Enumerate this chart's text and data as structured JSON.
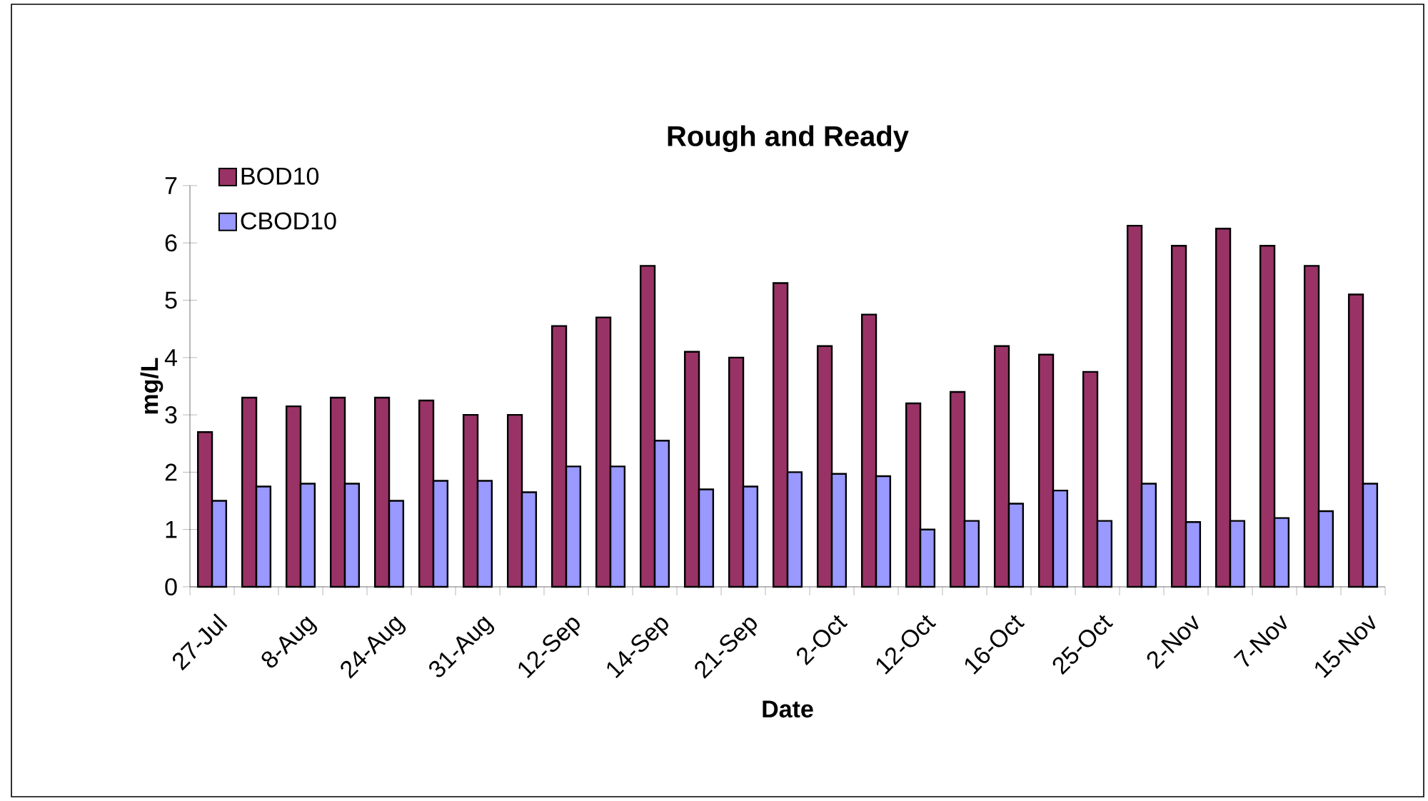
{
  "chart_data": {
    "type": "bar",
    "title": "Rough and Ready",
    "xlabel": "Date",
    "ylabel": "mg/L",
    "categories": [
      "27-Jul",
      null,
      "8-Aug",
      null,
      "24-Aug",
      null,
      "31-Aug",
      null,
      "12-Sep",
      null,
      "14-Sep",
      null,
      "21-Sep",
      null,
      "2-Oct",
      null,
      "12-Oct",
      null,
      "16-Oct",
      null,
      "25-Oct",
      null,
      "2-Nov",
      null,
      "7-Nov",
      null,
      "15-Nov"
    ],
    "series": [
      {
        "name": "BOD10",
        "color": "#993366",
        "values": [
          2.7,
          3.3,
          3.15,
          3.3,
          3.3,
          3.25,
          3.0,
          3.0,
          4.55,
          4.7,
          5.6,
          4.1,
          4.0,
          5.3,
          4.2,
          4.75,
          3.2,
          3.4,
          4.2,
          4.05,
          3.75,
          6.3,
          5.95,
          6.25,
          5.95,
          5.6,
          5.1
        ]
      },
      {
        "name": "CBOD10",
        "color": "#9999ff",
        "values": [
          1.5,
          1.75,
          1.8,
          1.8,
          1.5,
          1.85,
          1.85,
          1.65,
          2.1,
          2.1,
          2.55,
          1.7,
          1.75,
          2.0,
          1.97,
          1.93,
          1.0,
          1.15,
          1.45,
          1.68,
          1.15,
          1.8,
          1.13,
          1.15,
          1.2,
          1.32,
          1.8
        ]
      }
    ],
    "ylim": [
      0,
      7
    ],
    "yticks": [
      0,
      1,
      2,
      3,
      4,
      5,
      6,
      7
    ],
    "grid": false,
    "legend": "top left"
  }
}
